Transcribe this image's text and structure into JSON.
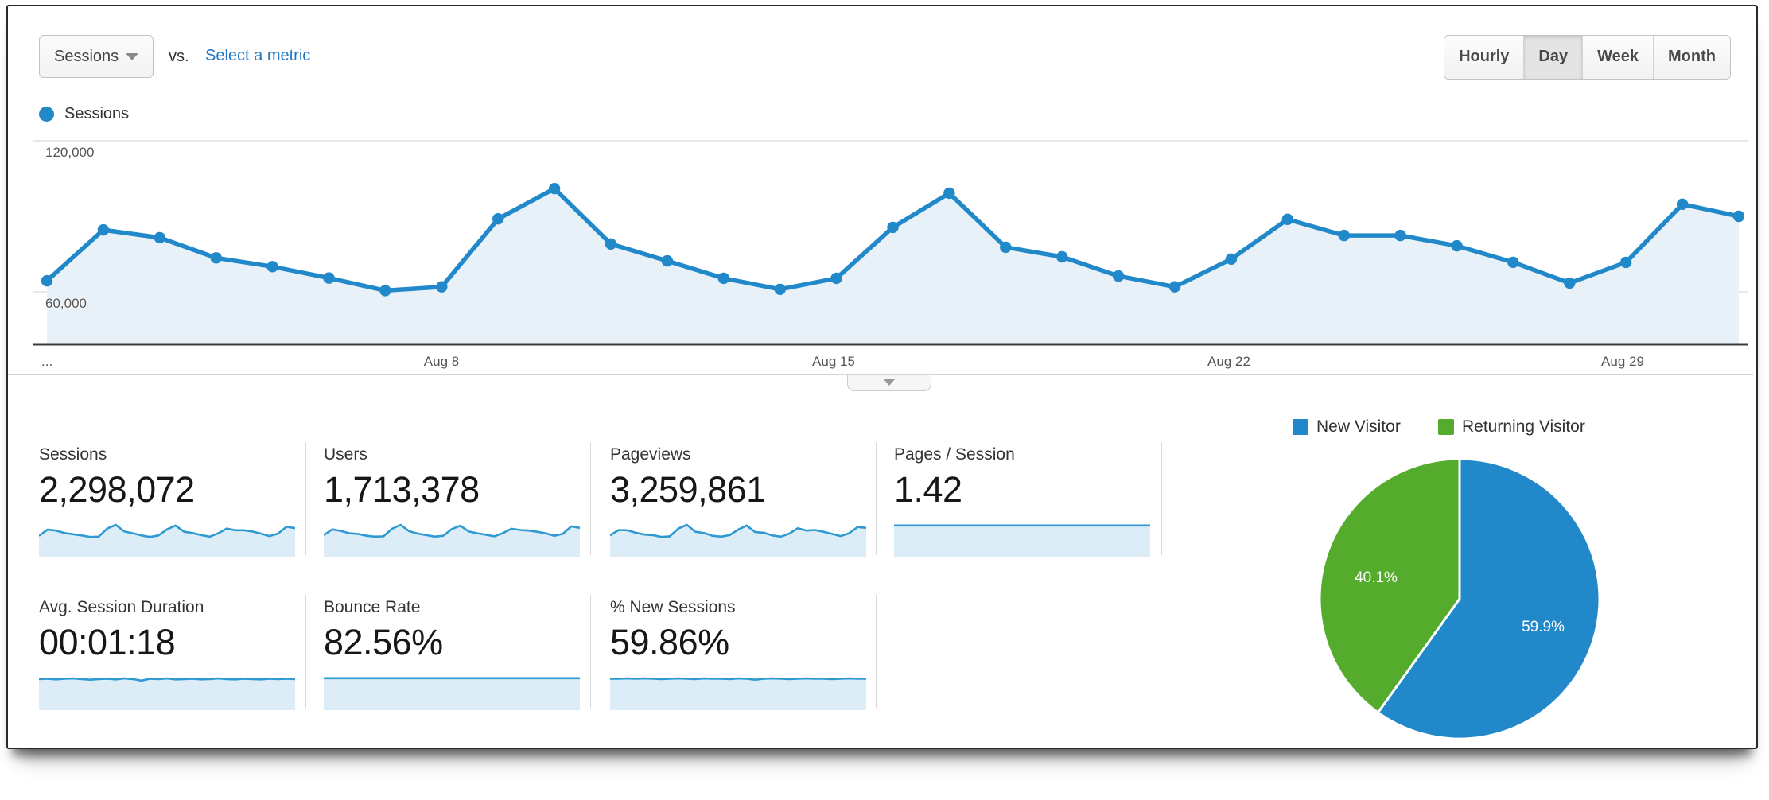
{
  "header": {
    "metric_selector": {
      "label": "Sessions"
    },
    "vs_label": "vs.",
    "select_metric_label": "Select a metric",
    "granularity": [
      {
        "label": "Hourly",
        "selected": false
      },
      {
        "label": "Day",
        "selected": true
      },
      {
        "label": "Week",
        "selected": false
      },
      {
        "label": "Month",
        "selected": false
      }
    ]
  },
  "legend": {
    "label": "Sessions"
  },
  "colors": {
    "line_blue": "#2189ca",
    "area_fill": "#e8f1f8",
    "spark_line": "#2f9ad2",
    "spark_fill": "#dcedf8",
    "pie_blue": "#2189ca",
    "pie_green": "#55ab2b",
    "link_blue": "#2076c2"
  },
  "chart_data": [
    {
      "type": "line",
      "title": "Sessions by day",
      "x": [
        "Aug 1",
        "Aug 2",
        "Aug 3",
        "Aug 4",
        "Aug 5",
        "Aug 6",
        "Aug 7",
        "Aug 8",
        "Aug 9",
        "Aug 10",
        "Aug 11",
        "Aug 12",
        "Aug 13",
        "Aug 14",
        "Aug 15",
        "Aug 16",
        "Aug 17",
        "Aug 18",
        "Aug 19",
        "Aug 20",
        "Aug 21",
        "Aug 22",
        "Aug 23",
        "Aug 24",
        "Aug 25",
        "Aug 26",
        "Aug 27",
        "Aug 28",
        "Aug 29",
        "Aug 30",
        "Aug 31"
      ],
      "series": [
        {
          "name": "Sessions",
          "values": [
            64400,
            84600,
            81500,
            73500,
            70000,
            65500,
            60500,
            62000,
            89000,
            101000,
            79000,
            72300,
            65400,
            61000,
            65400,
            85600,
            99200,
            77700,
            73900,
            66300,
            62000,
            73000,
            88800,
            82400,
            82400,
            78300,
            71700,
            63500,
            71700,
            94800,
            90000
          ]
        }
      ],
      "xlabel": "",
      "ylabel": "",
      "yticks": [
        60000,
        120000
      ],
      "ytick_labels": [
        "60,000",
        "120,000"
      ],
      "xtick_labels": [
        "...",
        "Aug 8",
        "Aug 15",
        "Aug 22",
        "Aug 29"
      ],
      "ylim": [
        39000,
        135000
      ],
      "grid": true,
      "legend_position": "top-left"
    },
    {
      "type": "pie",
      "labels": [
        "New Visitor",
        "Returning Visitor"
      ],
      "values": [
        59.9,
        40.1
      ],
      "value_labels": [
        "59.9%",
        "40.1%"
      ],
      "colors": [
        "#2189ca",
        "#55ab2b"
      ],
      "legend_position": "top"
    }
  ],
  "metrics": [
    {
      "label": "Sessions",
      "value": "2,298,072",
      "spark": [
        0.64,
        0.84,
        0.81,
        0.73,
        0.69,
        0.65,
        0.6,
        0.61,
        0.88,
        1,
        0.78,
        0.72,
        0.65,
        0.6,
        0.65,
        0.85,
        0.98,
        0.77,
        0.73,
        0.66,
        0.61,
        0.72,
        0.88,
        0.82,
        0.82,
        0.78,
        0.71,
        0.63,
        0.71,
        0.94,
        0.89
      ]
    },
    {
      "label": "Users",
      "value": "1,713,378",
      "spark": [
        0.66,
        0.85,
        0.8,
        0.72,
        0.7,
        0.64,
        0.61,
        0.62,
        0.87,
        1,
        0.79,
        0.71,
        0.66,
        0.61,
        0.64,
        0.86,
        0.97,
        0.78,
        0.72,
        0.67,
        0.62,
        0.73,
        0.87,
        0.83,
        0.81,
        0.77,
        0.72,
        0.64,
        0.7,
        0.95,
        0.9
      ]
    },
    {
      "label": "Pageviews",
      "value": "3,259,861",
      "spark": [
        0.65,
        0.83,
        0.82,
        0.74,
        0.68,
        0.66,
        0.6,
        0.62,
        0.88,
        1,
        0.77,
        0.73,
        0.64,
        0.61,
        0.66,
        0.84,
        0.98,
        0.76,
        0.74,
        0.65,
        0.61,
        0.71,
        0.89,
        0.81,
        0.83,
        0.77,
        0.7,
        0.63,
        0.72,
        0.93,
        0.9
      ]
    },
    {
      "label": "Pages / Session",
      "value": "1.42",
      "spark": [
        0.98,
        0.98,
        0.98,
        0.98,
        0.98,
        0.98,
        0.98,
        0.98,
        0.98,
        0.98,
        0.98,
        0.98,
        0.98,
        0.98,
        0.98,
        0.98,
        0.98,
        0.98,
        0.98,
        0.98,
        0.98,
        0.98,
        0.98,
        0.98,
        0.98,
        0.98,
        0.98,
        0.98,
        0.98,
        0.98,
        0.98
      ]
    },
    {
      "label": "Avg. Session Duration",
      "value": "00:01:18",
      "spark": [
        0.95,
        0.96,
        0.94,
        0.96,
        0.97,
        0.95,
        0.93,
        0.95,
        0.96,
        0.94,
        0.97,
        0.95,
        0.9,
        0.96,
        0.95,
        0.97,
        0.94,
        0.95,
        0.96,
        0.94,
        0.95,
        0.97,
        0.95,
        0.94,
        0.96,
        0.95,
        0.94,
        0.96,
        0.95,
        0.96,
        0.95
      ]
    },
    {
      "label": "Bounce Rate",
      "value": "82.56%",
      "spark": [
        0.98,
        0.98,
        0.98,
        0.98,
        0.98,
        0.98,
        0.98,
        0.98,
        0.98,
        0.98,
        0.98,
        0.98,
        0.98,
        0.98,
        0.98,
        0.98,
        0.98,
        0.98,
        0.98,
        0.98,
        0.98,
        0.98,
        0.98,
        0.98,
        0.98,
        0.98,
        0.98,
        0.98,
        0.98,
        0.98,
        0.98
      ]
    },
    {
      "label": "% New Sessions",
      "value": "59.86%",
      "spark": [
        0.96,
        0.96,
        0.97,
        0.96,
        0.97,
        0.96,
        0.95,
        0.96,
        0.97,
        0.96,
        0.95,
        0.97,
        0.96,
        0.96,
        0.95,
        0.97,
        0.96,
        0.93,
        0.96,
        0.97,
        0.96,
        0.95,
        0.96,
        0.97,
        0.96,
        0.96,
        0.95,
        0.96,
        0.97,
        0.96,
        0.96
      ]
    }
  ],
  "pull_tab": {
    "icon": "chevron-down"
  }
}
